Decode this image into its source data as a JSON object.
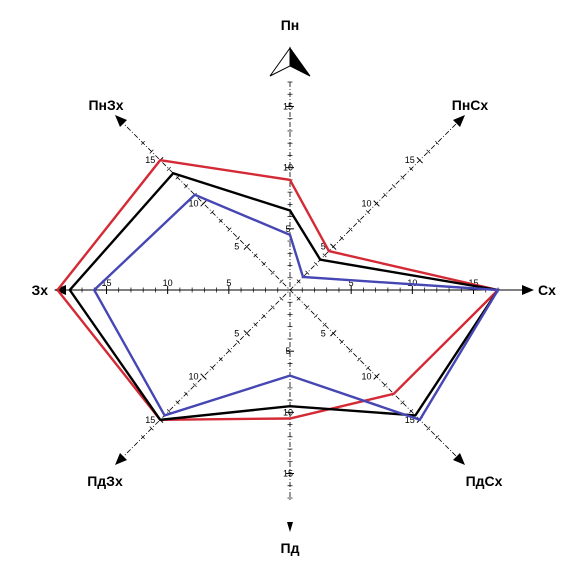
{
  "chart_data": {
    "type": "radar",
    "directions": [
      "Пн",
      "ПнСх",
      "Сх",
      "ПдСх",
      "Пд",
      "ПдЗх",
      "Зх",
      "ПнЗх"
    ],
    "scale_ticks": [
      5,
      10,
      15
    ],
    "r_max": 17,
    "series": [
      {
        "color": "#d42a35",
        "values": [
          9,
          4.5,
          17,
          12,
          10.5,
          15,
          19,
          15
        ]
      },
      {
        "color": "#000000",
        "values": [
          6.5,
          3.5,
          17,
          14.5,
          9.5,
          15,
          18,
          13.5
        ]
      },
      {
        "color": "#4646b4",
        "values": [
          4.5,
          1.5,
          17,
          15,
          7,
          14.5,
          16,
          11
        ]
      }
    ]
  }
}
